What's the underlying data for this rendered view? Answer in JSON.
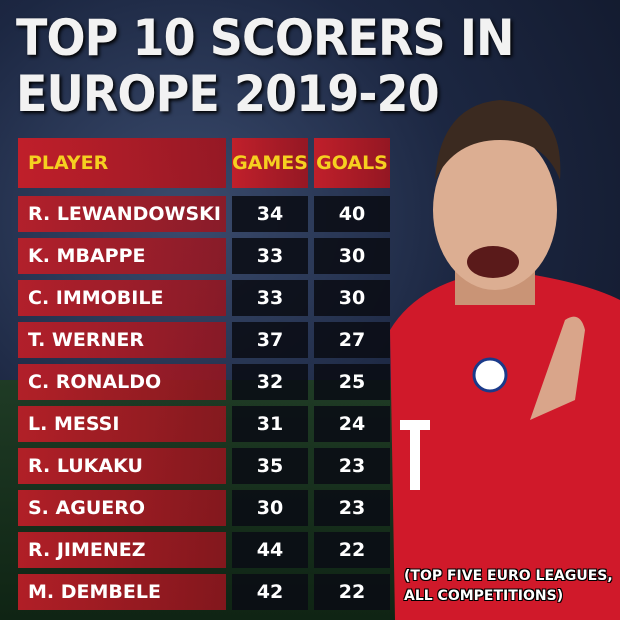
{
  "title": {
    "lines": [
      "TOP 10 SCORERS IN",
      "EUROPE 2019-20"
    ]
  },
  "table": {
    "headers": [
      "PLAYER",
      "GAMES",
      "GOALS"
    ],
    "rows": [
      [
        "R. LEWANDOWSKI",
        34,
        40
      ],
      [
        "K. MBAPPE",
        33,
        30
      ],
      [
        "C. IMMOBILE",
        33,
        30
      ],
      [
        "T. WERNER",
        37,
        27
      ],
      [
        "C. RONALDO",
        32,
        25
      ],
      [
        "L. MESSI",
        31,
        24
      ],
      [
        "R. LUKAKU",
        35,
        23
      ],
      [
        "S. AGUERO",
        30,
        23
      ],
      [
        "R. JIMENEZ",
        44,
        22
      ],
      [
        "M. DEMBELE",
        42,
        22
      ]
    ]
  },
  "footnote": {
    "lines": [
      "(TOP FIVE EURO LEAGUES,",
      "ALL COMPETITIONS)"
    ]
  }
}
